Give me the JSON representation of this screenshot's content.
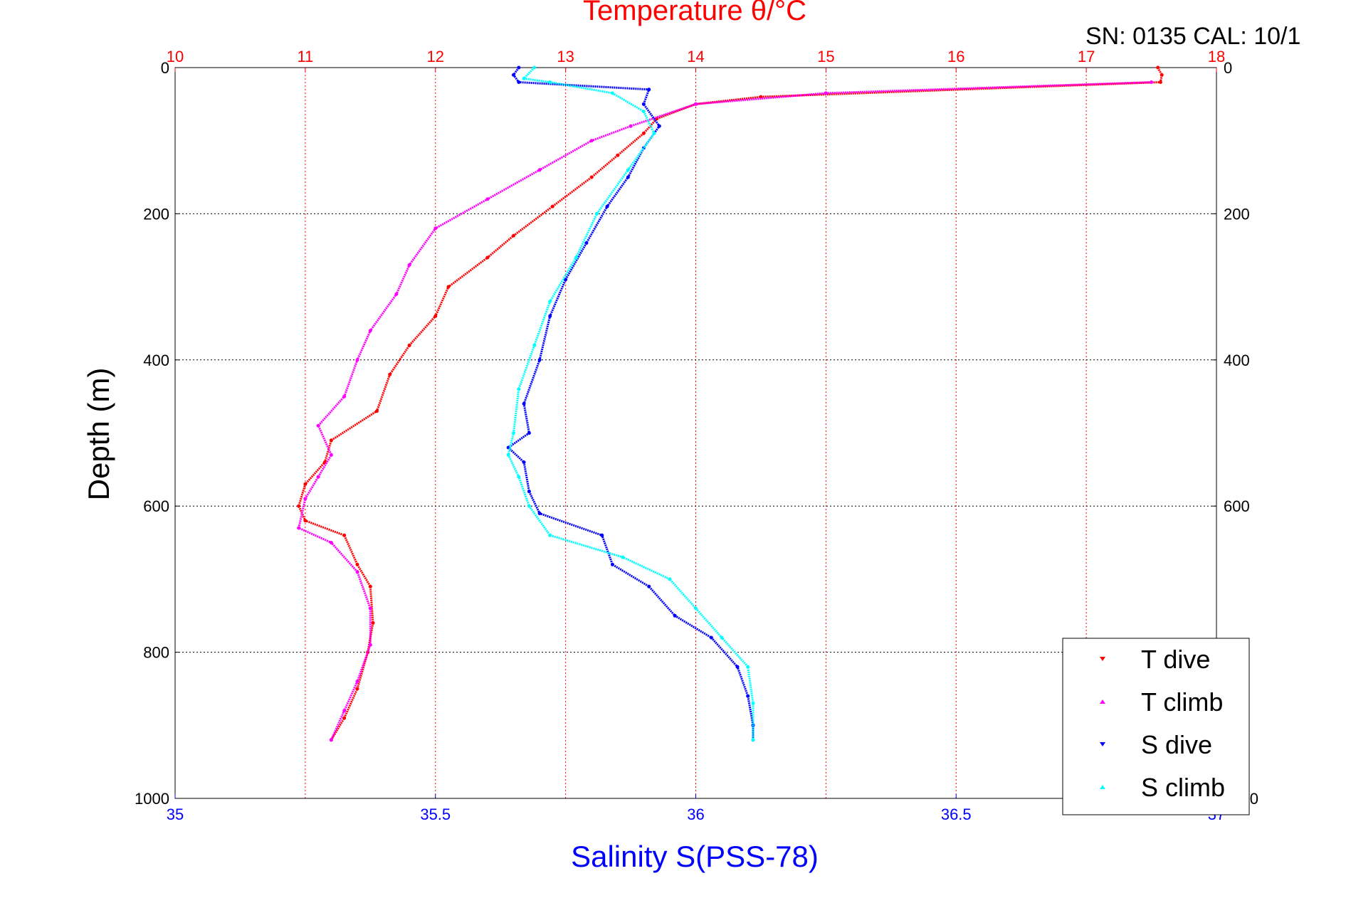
{
  "chart_data": {
    "type": "scatter",
    "title": "Temperature θ/°C",
    "top_right_label": "SN: 0135  CAL: 10/1",
    "ylabel": "Depth (m)",
    "xlabel_bottom": "Salinity S(PSS-78)",
    "ylim": [
      0,
      1000
    ],
    "y_reversed": true,
    "y_ticks": [
      0,
      200,
      400,
      600,
      800,
      1000
    ],
    "y_tick_labels": [
      "0",
      "200",
      "400",
      "600",
      "800",
      "1000"
    ],
    "x_top": {
      "label": "Temperature θ/°C",
      "range": [
        10,
        18
      ],
      "ticks": [
        10,
        11,
        12,
        13,
        14,
        15,
        16,
        17,
        18
      ],
      "tick_labels": [
        "10",
        "11",
        "12",
        "13",
        "14",
        "15",
        "16",
        "17",
        "18"
      ]
    },
    "x_bottom": {
      "label": "Salinity S(PSS-78)",
      "range": [
        35,
        37
      ],
      "ticks": [
        35,
        35.5,
        36,
        36.5,
        37
      ],
      "tick_labels": [
        "35",
        "35.5",
        "36",
        "36.5",
        "37"
      ]
    },
    "grid": true,
    "legend_position": "bottom-right",
    "colors": {
      "temperature_axis": "#ff0000",
      "salinity_axis": "#0000ff",
      "grid_top": "#ff0000",
      "grid_h": "#000000"
    },
    "series": [
      {
        "name": "T dive",
        "axis": "top",
        "color": "#ff0000",
        "marker": "triangle-down",
        "points": [
          [
            17.55,
            0
          ],
          [
            17.58,
            10
          ],
          [
            17.57,
            20
          ],
          [
            14.5,
            40
          ],
          [
            14.0,
            50
          ],
          [
            13.7,
            70
          ],
          [
            13.6,
            90
          ],
          [
            13.4,
            120
          ],
          [
            13.2,
            150
          ],
          [
            12.9,
            190
          ],
          [
            12.6,
            230
          ],
          [
            12.4,
            260
          ],
          [
            12.1,
            300
          ],
          [
            12.0,
            340
          ],
          [
            11.8,
            380
          ],
          [
            11.65,
            420
          ],
          [
            11.55,
            470
          ],
          [
            11.2,
            510
          ],
          [
            11.15,
            540
          ],
          [
            11.0,
            570
          ],
          [
            10.95,
            600
          ],
          [
            11.0,
            620
          ],
          [
            11.3,
            640
          ],
          [
            11.4,
            680
          ],
          [
            11.5,
            710
          ],
          [
            11.52,
            760
          ],
          [
            11.48,
            800
          ],
          [
            11.4,
            850
          ],
          [
            11.3,
            890
          ],
          [
            11.2,
            920
          ]
        ]
      },
      {
        "name": "T climb",
        "axis": "top",
        "color": "#ff00ff",
        "marker": "triangle-up",
        "points": [
          [
            17.5,
            20
          ],
          [
            15.0,
            35
          ],
          [
            14.0,
            50
          ],
          [
            13.5,
            80
          ],
          [
            13.2,
            100
          ],
          [
            12.8,
            140
          ],
          [
            12.4,
            180
          ],
          [
            12.0,
            220
          ],
          [
            11.8,
            270
          ],
          [
            11.7,
            310
          ],
          [
            11.5,
            360
          ],
          [
            11.4,
            400
          ],
          [
            11.3,
            450
          ],
          [
            11.1,
            490
          ],
          [
            11.2,
            530
          ],
          [
            11.1,
            560
          ],
          [
            11.0,
            590
          ],
          [
            10.95,
            630
          ],
          [
            11.2,
            650
          ],
          [
            11.4,
            690
          ],
          [
            11.5,
            740
          ],
          [
            11.5,
            790
          ],
          [
            11.4,
            840
          ],
          [
            11.3,
            880
          ],
          [
            11.2,
            920
          ]
        ]
      },
      {
        "name": "S dive",
        "axis": "bottom",
        "color": "#0000ff",
        "marker": "triangle-down",
        "points": [
          [
            35.66,
            0
          ],
          [
            35.65,
            10
          ],
          [
            35.66,
            20
          ],
          [
            35.91,
            30
          ],
          [
            35.9,
            50
          ],
          [
            35.93,
            80
          ],
          [
            35.9,
            110
          ],
          [
            35.87,
            150
          ],
          [
            35.83,
            190
          ],
          [
            35.79,
            240
          ],
          [
            35.75,
            290
          ],
          [
            35.72,
            340
          ],
          [
            35.7,
            400
          ],
          [
            35.67,
            460
          ],
          [
            35.68,
            500
          ],
          [
            35.64,
            520
          ],
          [
            35.67,
            540
          ],
          [
            35.68,
            580
          ],
          [
            35.7,
            610
          ],
          [
            35.82,
            640
          ],
          [
            35.84,
            680
          ],
          [
            35.91,
            710
          ],
          [
            35.96,
            750
          ],
          [
            36.03,
            780
          ],
          [
            36.08,
            820
          ],
          [
            36.1,
            860
          ],
          [
            36.11,
            900
          ],
          [
            36.11,
            920
          ]
        ]
      },
      {
        "name": "S climb",
        "axis": "bottom",
        "color": "#00ffff",
        "marker": "triangle-up",
        "points": [
          [
            35.69,
            0
          ],
          [
            35.67,
            15
          ],
          [
            35.72,
            20
          ],
          [
            35.84,
            35
          ],
          [
            35.9,
            60
          ],
          [
            35.92,
            90
          ],
          [
            35.87,
            140
          ],
          [
            35.81,
            200
          ],
          [
            35.77,
            260
          ],
          [
            35.72,
            320
          ],
          [
            35.69,
            380
          ],
          [
            35.66,
            440
          ],
          [
            35.65,
            500
          ],
          [
            35.64,
            530
          ],
          [
            35.66,
            560
          ],
          [
            35.68,
            600
          ],
          [
            35.72,
            640
          ],
          [
            35.86,
            670
          ],
          [
            35.95,
            700
          ],
          [
            36.0,
            740
          ],
          [
            36.05,
            780
          ],
          [
            36.1,
            820
          ],
          [
            36.11,
            870
          ],
          [
            36.11,
            920
          ]
        ]
      }
    ]
  }
}
